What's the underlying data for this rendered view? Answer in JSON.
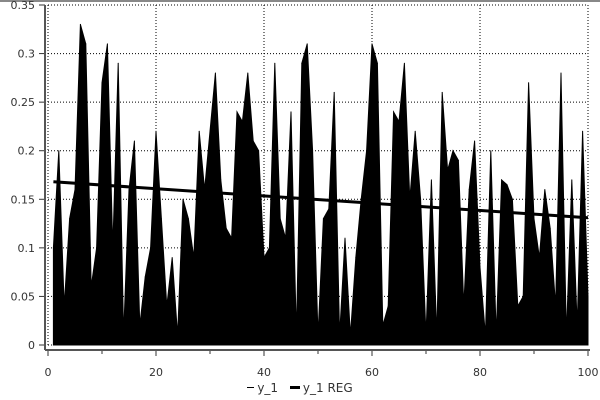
{
  "chart_data": {
    "type": "area",
    "title": "",
    "xlabel": "",
    "ylabel": "",
    "xlim": [
      0,
      100
    ],
    "ylim": [
      0,
      0.35
    ],
    "xticks": [
      0,
      20,
      40,
      60,
      80,
      100
    ],
    "yticks": [
      0,
      0.05,
      0.1,
      0.15,
      0.2,
      0.25,
      0.3,
      0.35
    ],
    "xtick_labels": [
      "0",
      "20",
      "40",
      "60",
      "80",
      "100"
    ],
    "ytick_labels": [
      "0",
      "0.05",
      "0.1",
      "0.15",
      "0.2",
      "0.25",
      "0.3",
      "0.35"
    ],
    "grid": true,
    "legend_placement": "bottom",
    "series": [
      {
        "name": "y_1",
        "color": "#000000",
        "x": [
          1,
          2,
          3,
          4,
          5,
          6,
          7,
          8,
          9,
          10,
          11,
          12,
          13,
          14,
          15,
          16,
          17,
          18,
          19,
          20,
          21,
          22,
          23,
          24,
          25,
          26,
          27,
          28,
          29,
          30,
          31,
          32,
          33,
          34,
          35,
          36,
          37,
          38,
          39,
          40,
          41,
          42,
          43,
          44,
          45,
          46,
          47,
          48,
          49,
          50,
          51,
          52,
          53,
          54,
          55,
          56,
          57,
          58,
          59,
          60,
          61,
          62,
          63,
          64,
          65,
          66,
          67,
          68,
          69,
          70,
          71,
          72,
          73,
          74,
          75,
          76,
          77,
          78,
          79,
          80,
          81,
          82,
          83,
          84,
          85,
          86,
          87,
          88,
          89,
          90,
          91,
          92,
          93,
          94,
          95,
          96,
          97,
          98,
          99,
          100
        ],
        "y": [
          0.1,
          0.2,
          0.04,
          0.13,
          0.16,
          0.33,
          0.31,
          0.06,
          0.1,
          0.27,
          0.31,
          0.1,
          0.29,
          0.01,
          0.16,
          0.21,
          0.02,
          0.07,
          0.1,
          0.22,
          0.13,
          0.04,
          0.09,
          0.01,
          0.15,
          0.13,
          0.09,
          0.22,
          0.16,
          0.22,
          0.28,
          0.17,
          0.12,
          0.11,
          0.24,
          0.23,
          0.28,
          0.21,
          0.2,
          0.09,
          0.1,
          0.29,
          0.13,
          0.11,
          0.24,
          0.01,
          0.29,
          0.31,
          0.2,
          0.01,
          0.13,
          0.14,
          0.26,
          0.01,
          0.11,
          0.01,
          0.09,
          0.15,
          0.2,
          0.31,
          0.29,
          0.02,
          0.04,
          0.24,
          0.23,
          0.29,
          0.15,
          0.22,
          0.15,
          0.01,
          0.17,
          0.01,
          0.26,
          0.18,
          0.2,
          0.19,
          0.04,
          0.16,
          0.21,
          0.08,
          0.01,
          0.2,
          0.01,
          0.17,
          0.165,
          0.15,
          0.04,
          0.05,
          0.27,
          0.13,
          0.09,
          0.16,
          0.12,
          0.04,
          0.28,
          0.01,
          0.17,
          0.02,
          0.22,
          0.05
        ]
      },
      {
        "name": "y_1 REG",
        "color": "#000000",
        "x": [
          1,
          100
        ],
        "y": [
          0.168,
          0.131
        ]
      }
    ]
  }
}
